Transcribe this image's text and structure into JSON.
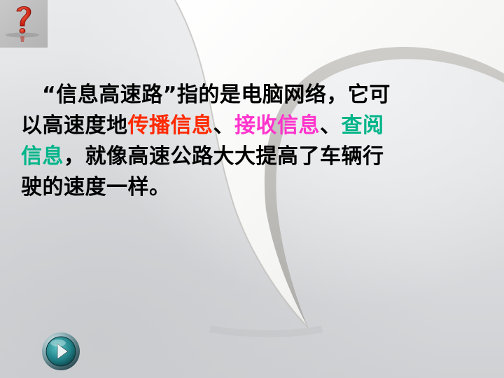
{
  "slide": {
    "badge_icon": "question-mark-icon",
    "paragraph": {
      "line1": "“信息高速路”指的是电脑网络，它可",
      "line2_prefix": "以高速度地",
      "line2_red": "传播信息",
      "line2_sep1": "、",
      "line2_pink": "接收信息",
      "line2_sep2": "、",
      "line2_teal": "查阅",
      "line3_teal": "信息",
      "line3_rest": "，就像高速公路大大提高了车辆行",
      "line4": "驶的速度一样。"
    },
    "colors": {
      "red": "#ff2a00",
      "pink": "#ff33cc",
      "teal": "#00b58a"
    },
    "nav_button_icon": "play-next-icon"
  }
}
